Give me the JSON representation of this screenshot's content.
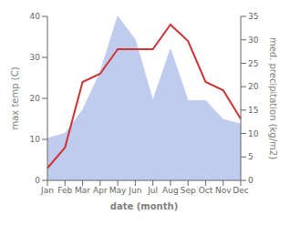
{
  "chart_data": {
    "type": "line",
    "categories": [
      "Jan",
      "Feb",
      "Mar",
      "Apr",
      "May",
      "Jun",
      "Jul",
      "Aug",
      "Sep",
      "Oct",
      "Nov",
      "Dec"
    ],
    "series": [
      {
        "type": "area",
        "axis": "y2",
        "color": "#c0ccee",
        "values": [
          9,
          10,
          15,
          23,
          35,
          30,
          17,
          28,
          17,
          17,
          13,
          12
        ]
      },
      {
        "type": "line",
        "color": "#cc3333",
        "values": [
          3,
          8,
          24,
          26,
          32,
          32,
          32,
          38,
          34,
          24,
          22,
          15
        ]
      }
    ],
    "xlabel": "date (month)",
    "ylabel": "max temp (C)",
    "y2label": "med. precipitation (kg/m2)",
    "ylim": [
      0,
      40
    ],
    "yticks": [
      0,
      10,
      20,
      30,
      40
    ],
    "y2lim": [
      0,
      35
    ],
    "y2ticks": [
      0,
      5,
      10,
      15,
      20,
      25,
      30,
      35
    ],
    "grid": false
  }
}
